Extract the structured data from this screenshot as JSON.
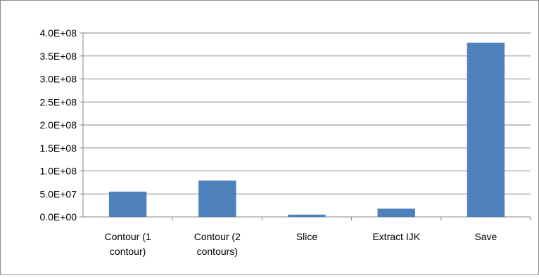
{
  "chart_data": {
    "type": "bar",
    "title": "",
    "xlabel": "",
    "ylabel": "",
    "categories": [
      "Contour (1 contour)",
      "Contour (2 contours)",
      "Slice",
      "Extract IJK",
      "Save"
    ],
    "category_label_lines": [
      [
        "Contour (1",
        "contour)"
      ],
      [
        "Contour (2",
        "contours)"
      ],
      [
        "Slice"
      ],
      [
        "Extract IJK"
      ],
      [
        "Save"
      ]
    ],
    "values": [
      55000000,
      79000000,
      5000000,
      18000000,
      379000000
    ],
    "ylim": [
      0,
      400000000
    ],
    "yticks": [
      0,
      50000000,
      100000000,
      150000000,
      200000000,
      250000000,
      300000000,
      350000000,
      400000000
    ],
    "ytick_labels": [
      "0.0E+00",
      "5.0E+07",
      "1.0E+08",
      "1.5E+08",
      "2.0E+08",
      "2.5E+08",
      "3.0E+08",
      "3.5E+08",
      "4.0E+08"
    ],
    "grid": true,
    "legend": "none",
    "colors": {
      "bar": "#4f81bd",
      "grid": "#868686",
      "axis": "#868686"
    }
  }
}
